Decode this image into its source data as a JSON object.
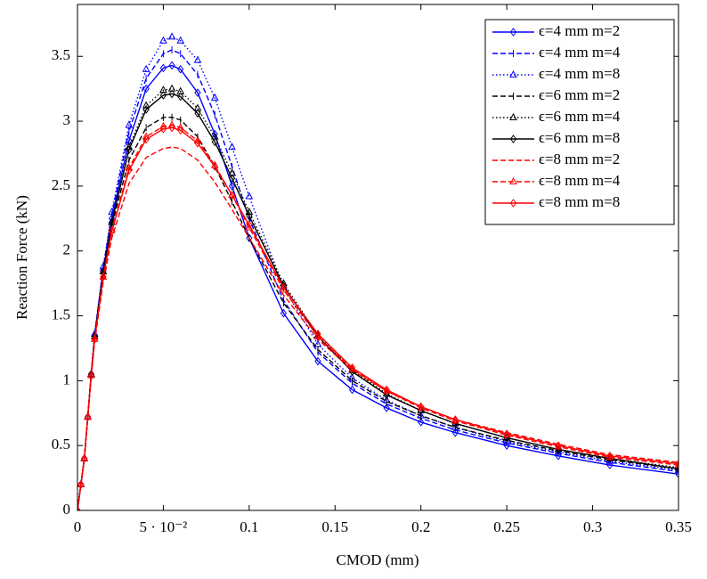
{
  "chart_data": {
    "type": "line",
    "xlabel": "CMOD (mm)",
    "ylabel": "Reaction Force (kN)",
    "xlim": [
      0,
      0.35
    ],
    "ylim": [
      0,
      3.9
    ],
    "xticks": [
      0,
      {
        "value": 0.05,
        "label": "5 · 10⁻²"
      },
      0.1,
      0.15,
      0.2,
      0.25,
      0.3,
      0.35
    ],
    "yticks": [
      0,
      0.5,
      1,
      1.5,
      2,
      2.5,
      3,
      3.5
    ],
    "legend": "upper right",
    "x": [
      0,
      0.002,
      0.004,
      0.006,
      0.008,
      0.01,
      0.015,
      0.02,
      0.03,
      0.04,
      0.05,
      0.055,
      0.06,
      0.07,
      0.08,
      0.09,
      0.1,
      0.12,
      0.14,
      0.16,
      0.18,
      0.2,
      0.22,
      0.25,
      0.28,
      0.31,
      0.35
    ],
    "series": [
      {
        "name": "ϵ=4 mm m=2",
        "color": "#0000ff",
        "dash": "solid",
        "marker": "diamond",
        "values": [
          0,
          0.2,
          0.4,
          0.72,
          1.05,
          1.35,
          1.85,
          2.25,
          2.85,
          3.25,
          3.41,
          3.43,
          3.4,
          3.22,
          2.9,
          2.5,
          2.1,
          1.52,
          1.15,
          0.93,
          0.79,
          0.68,
          0.6,
          0.5,
          0.42,
          0.35,
          0.28
        ]
      },
      {
        "name": "ϵ=4 mm m=4",
        "color": "#0000ff",
        "dash": "dashed",
        "marker": "bar",
        "values": [
          0,
          0.2,
          0.4,
          0.72,
          1.05,
          1.35,
          1.87,
          2.28,
          2.92,
          3.33,
          3.52,
          3.55,
          3.52,
          3.36,
          3.05,
          2.65,
          2.25,
          1.62,
          1.22,
          0.98,
          0.82,
          0.71,
          0.62,
          0.52,
          0.44,
          0.37,
          0.3
        ]
      },
      {
        "name": "ϵ=4 mm m=8",
        "color": "#0000ff",
        "dash": "dotted",
        "marker": "triangle",
        "values": [
          0,
          0.2,
          0.4,
          0.72,
          1.05,
          1.36,
          1.88,
          2.3,
          2.97,
          3.4,
          3.62,
          3.65,
          3.62,
          3.47,
          3.18,
          2.8,
          2.42,
          1.72,
          1.28,
          1.02,
          0.85,
          0.73,
          0.64,
          0.53,
          0.45,
          0.38,
          0.31
        ]
      },
      {
        "name": "ϵ=6 mm m=2",
        "color": "#000000",
        "dash": "dashed",
        "marker": "bar",
        "values": [
          0,
          0.2,
          0.4,
          0.72,
          1.04,
          1.33,
          1.82,
          2.2,
          2.7,
          2.95,
          3.03,
          3.03,
          3.01,
          2.88,
          2.65,
          2.38,
          2.1,
          1.6,
          1.24,
          1.0,
          0.84,
          0.73,
          0.64,
          0.54,
          0.46,
          0.39,
          0.32
        ]
      },
      {
        "name": "ϵ=6 mm m=4",
        "color": "#000000",
        "dash": "dotted",
        "marker": "triangle",
        "values": [
          0,
          0.2,
          0.4,
          0.72,
          1.05,
          1.34,
          1.84,
          2.22,
          2.8,
          3.12,
          3.24,
          3.25,
          3.23,
          3.1,
          2.88,
          2.6,
          2.3,
          1.75,
          1.35,
          1.08,
          0.9,
          0.77,
          0.67,
          0.56,
          0.47,
          0.4,
          0.33
        ]
      },
      {
        "name": "ϵ=6 mm m=8",
        "color": "#000000",
        "dash": "solid",
        "marker": "diamond",
        "values": [
          0,
          0.2,
          0.4,
          0.72,
          1.05,
          1.34,
          1.84,
          2.22,
          2.78,
          3.09,
          3.2,
          3.21,
          3.19,
          3.06,
          2.84,
          2.56,
          2.27,
          1.73,
          1.34,
          1.07,
          0.89,
          0.77,
          0.67,
          0.56,
          0.47,
          0.4,
          0.32
        ]
      },
      {
        "name": "ϵ=8 mm m=2",
        "color": "#ff0000",
        "dash": "dashed",
        "marker": "none",
        "values": [
          0,
          0.2,
          0.4,
          0.72,
          1.03,
          1.3,
          1.76,
          2.1,
          2.52,
          2.72,
          2.79,
          2.8,
          2.79,
          2.7,
          2.53,
          2.32,
          2.1,
          1.66,
          1.32,
          1.08,
          0.92,
          0.8,
          0.7,
          0.6,
          0.51,
          0.43,
          0.37
        ]
      },
      {
        "name": "ϵ=8 mm m=4",
        "color": "#ff0000",
        "dash": "dashed",
        "marker": "triangle",
        "values": [
          0,
          0.2,
          0.4,
          0.72,
          1.04,
          1.32,
          1.8,
          2.16,
          2.64,
          2.88,
          2.96,
          2.97,
          2.95,
          2.85,
          2.66,
          2.43,
          2.18,
          1.7,
          1.34,
          1.09,
          0.92,
          0.79,
          0.69,
          0.58,
          0.49,
          0.41,
          0.35
        ]
      },
      {
        "name": "ϵ=8 mm m=8",
        "color": "#ff0000",
        "dash": "solid",
        "marker": "diamond",
        "values": [
          0,
          0.2,
          0.4,
          0.72,
          1.04,
          1.32,
          1.8,
          2.15,
          2.62,
          2.86,
          2.94,
          2.95,
          2.93,
          2.83,
          2.65,
          2.43,
          2.2,
          1.72,
          1.36,
          1.1,
          0.93,
          0.8,
          0.7,
          0.59,
          0.5,
          0.42,
          0.36
        ]
      }
    ]
  }
}
